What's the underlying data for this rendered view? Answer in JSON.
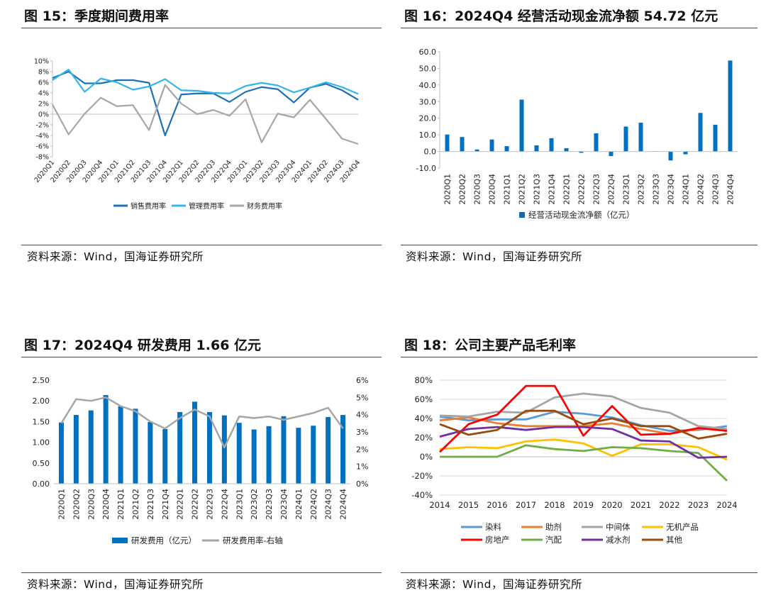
{
  "figures": [
    {
      "id": "fig15",
      "title": "图 15：季度期间费用率",
      "source": "资料来源：Wind，国海证券研究所",
      "chart_data": {
        "type": "line",
        "title": "季度期间费用率",
        "categories": [
          "2020Q1",
          "2020Q2",
          "2020Q3",
          "2020Q4",
          "2021Q1",
          "2021Q2",
          "2021Q3",
          "2021Q4",
          "2022Q1",
          "2022Q2",
          "2022Q3",
          "2022Q4",
          "2023Q1",
          "2023Q2",
          "2023Q3",
          "2023Q4",
          "2024Q1",
          "2024Q2",
          "2024Q3",
          "2024Q4"
        ],
        "ylim": [
          -8,
          10
        ],
        "yticks": [
          -8,
          -6,
          -4,
          -2,
          0,
          2,
          4,
          6,
          8,
          10
        ],
        "y_format": "percent",
        "series": [
          {
            "name": "销售费用率",
            "color": "#1f6fb8",
            "values": [
              6.8,
              8.0,
              5.8,
              5.8,
              6.4,
              6.4,
              5.9,
              -4.0,
              3.7,
              3.9,
              3.9,
              2.3,
              4.2,
              5.1,
              4.7,
              2.2,
              5.0,
              5.7,
              4.5,
              2.7
            ]
          },
          {
            "name": "管理费用率",
            "color": "#33b5ea",
            "values": [
              6.4,
              8.4,
              4.2,
              6.7,
              6.0,
              4.6,
              5.2,
              6.6,
              4.5,
              4.4,
              4.0,
              3.9,
              5.3,
              5.9,
              5.4,
              4.1,
              5.0,
              6.0,
              5.1,
              3.8
            ]
          },
          {
            "name": "财务费用率",
            "color": "#a6a6a6",
            "values": [
              1.8,
              -3.8,
              0.1,
              3.1,
              1.5,
              1.7,
              -3.0,
              5.5,
              2.0,
              0.0,
              0.8,
              -0.3,
              2.8,
              -5.3,
              0.1,
              -0.6,
              2.7,
              -0.9,
              -4.6,
              -5.6
            ]
          }
        ]
      }
    },
    {
      "id": "fig16",
      "title": "图 16：2024Q4 经营活动现金流净额 54.72 亿元",
      "source": "资料来源：Wind，国海证券研究所",
      "chart_data": {
        "type": "bar",
        "title": "2024Q4 经营活动现金流净额 54.72 亿元",
        "categories": [
          "2020Q1",
          "2020Q2",
          "2020Q3",
          "2020Q4",
          "2021Q1",
          "2021Q2",
          "2021Q3",
          "2021Q4",
          "2022Q1",
          "2022Q2",
          "2022Q3",
          "2022Q4",
          "2023Q1",
          "2023Q2",
          "2023Q3",
          "2023Q4",
          "2024Q1",
          "2024Q2",
          "2024Q3",
          "2024Q4"
        ],
        "ylim": [
          -10,
          60
        ],
        "yticks": [
          -10,
          0,
          10,
          20,
          30,
          40,
          50,
          60
        ],
        "y_format": "decimal1",
        "series": [
          {
            "name": "经营活动现金流净额（亿元）",
            "color": "#0070c0",
            "values": [
              10.2,
              8.7,
              1.2,
              7.2,
              3.2,
              31.2,
              3.7,
              8.0,
              2.0,
              -0.8,
              10.9,
              -2.8,
              15.0,
              17.3,
              0.2,
              -5.4,
              -1.7,
              23.2,
              16.1,
              54.72
            ]
          }
        ]
      }
    },
    {
      "id": "fig17",
      "title": "图 17：2024Q4 研发费用 1.66 亿元",
      "source": "资料来源：Wind，国海证券研究所",
      "chart_data": {
        "type": "bar",
        "title": "2024Q4 研发费用 1.66 亿元",
        "categories": [
          "2020Q1",
          "2020Q2",
          "2020Q3",
          "2020Q4",
          "2021Q1",
          "2021Q2",
          "2021Q3",
          "2021Q4",
          "2022Q1",
          "2022Q2",
          "2022Q3",
          "2022Q4",
          "2023Q1",
          "2023Q2",
          "2023Q3",
          "2023Q4",
          "2024Q1",
          "2024Q2",
          "2024Q3",
          "2024Q4"
        ],
        "ylim": [
          0,
          2.5
        ],
        "yticks": [
          0,
          0.5,
          1,
          1.5,
          2,
          2.5
        ],
        "y_format": "decimal2",
        "y2lim": [
          0,
          6
        ],
        "y2ticks": [
          0,
          1,
          2,
          3,
          4,
          5,
          6
        ],
        "y2_format": "percent",
        "series": [
          {
            "name": "研发费用（亿元）",
            "color": "#0070c0",
            "axis": "left",
            "kind": "bar",
            "values": [
              1.48,
              1.66,
              1.77,
              2.14,
              1.87,
              1.81,
              1.49,
              1.32,
              1.73,
              1.98,
              1.73,
              1.65,
              1.47,
              1.31,
              1.39,
              1.63,
              1.35,
              1.4,
              1.61,
              1.66
            ]
          },
          {
            "name": "研发费用率-右轴",
            "color": "#a6a6a6",
            "axis": "right",
            "kind": "line",
            "values": [
              3.5,
              4.9,
              4.8,
              5.0,
              4.5,
              4.2,
              3.6,
              3.2,
              3.8,
              4.3,
              3.9,
              2.1,
              3.9,
              3.8,
              3.9,
              3.7,
              3.9,
              4.1,
              4.4,
              3.2
            ]
          }
        ]
      }
    },
    {
      "id": "fig18",
      "title": "图 18：公司主要产品毛利率",
      "source": "资料来源：Wind，国海证券研究所",
      "chart_data": {
        "type": "line",
        "title": "公司主要产品毛利率",
        "categories": [
          "2014",
          "2015",
          "2016",
          "2017",
          "2018",
          "2019",
          "2020",
          "2021",
          "2022",
          "2023",
          "2024"
        ],
        "ylim": [
          -40,
          80
        ],
        "yticks": [
          -40,
          -20,
          0,
          20,
          40,
          60,
          80
        ],
        "y_format": "percent",
        "series": [
          {
            "name": "染料",
            "color": "#5b9bd5",
            "values": [
              42,
              38,
              39,
              39,
              47,
              45,
              41,
              33,
              27,
              28,
              32
            ]
          },
          {
            "name": "助剂",
            "color": "#ed7d31",
            "values": [
              38,
              41,
              35,
              32,
              32,
              32,
              35,
              29,
              24,
              29,
              29
            ]
          },
          {
            "name": "中间体",
            "color": "#a5a5a5",
            "values": [
              43,
              42,
              47,
              46,
              62,
              66,
              63,
              51,
              46,
              32,
              29
            ]
          },
          {
            "name": "无机产品",
            "color": "#ffc000",
            "values": [
              8,
              10,
              9,
              16,
              18,
              14,
              1,
              13,
              13,
              10,
              -3
            ]
          },
          {
            "name": "房地产",
            "color": "#ff0000",
            "values": [
              5,
              34,
              44,
              74,
              74,
              22,
              53,
              23,
              24,
              30,
              27
            ]
          },
          {
            "name": "汽配",
            "color": "#70ad47",
            "values": [
              0,
              0,
              0,
              12,
              8,
              6,
              10,
              9,
              6,
              4,
              -25
            ]
          },
          {
            "name": "减水剂",
            "color": "#7030a0",
            "values": [
              21,
              29,
              31,
              28,
              31,
              31,
              29,
              17,
              16,
              -1,
              0
            ]
          },
          {
            "name": "其他",
            "color": "#9c4a0a",
            "values": [
              34,
              23,
              28,
              48,
              48,
              34,
              40,
              32,
              32,
              19,
              24
            ]
          }
        ]
      }
    }
  ]
}
